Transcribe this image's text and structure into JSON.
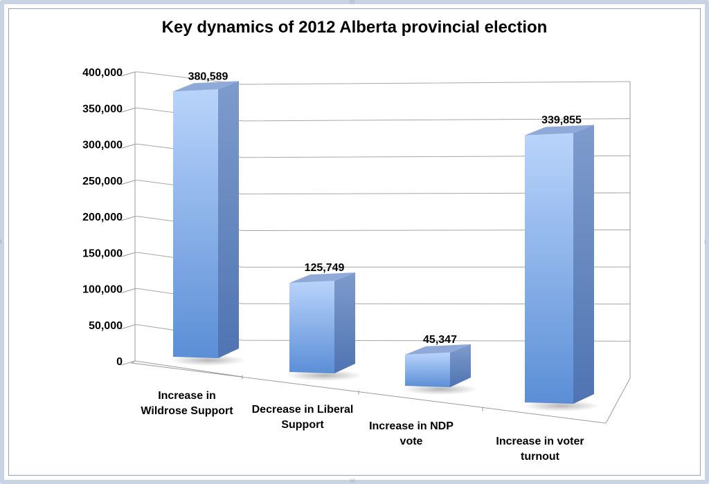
{
  "chart_data": {
    "type": "bar",
    "title": "Key dynamics of 2012 Alberta provincial election",
    "categories": [
      [
        "Increase in",
        "Wildrose Support"
      ],
      [
        "Decrease in Liberal",
        "Support"
      ],
      [
        "Increase in NDP",
        "vote"
      ],
      [
        "Increase in voter",
        "turnout"
      ]
    ],
    "values": [
      380589,
      125749,
      45347,
      339855
    ],
    "data_labels": [
      "380,589",
      "125,749",
      "45,347",
      "339,855"
    ],
    "ylim": [
      0,
      400000
    ],
    "y_ticks": [
      "0",
      "50,000",
      "100,000",
      "150,000",
      "200,000",
      "250,000",
      "300,000",
      "350,000",
      "400,000"
    ],
    "grid": true,
    "legend": "none",
    "style": "3d-column",
    "colors": {
      "bar_front_light": "#b7d2fb",
      "bar_front_dark": "#5d8fd6",
      "bar_side": "#5a7fbd",
      "bar_top": "#8ea9d6",
      "grid": "#a6a6a6"
    }
  }
}
